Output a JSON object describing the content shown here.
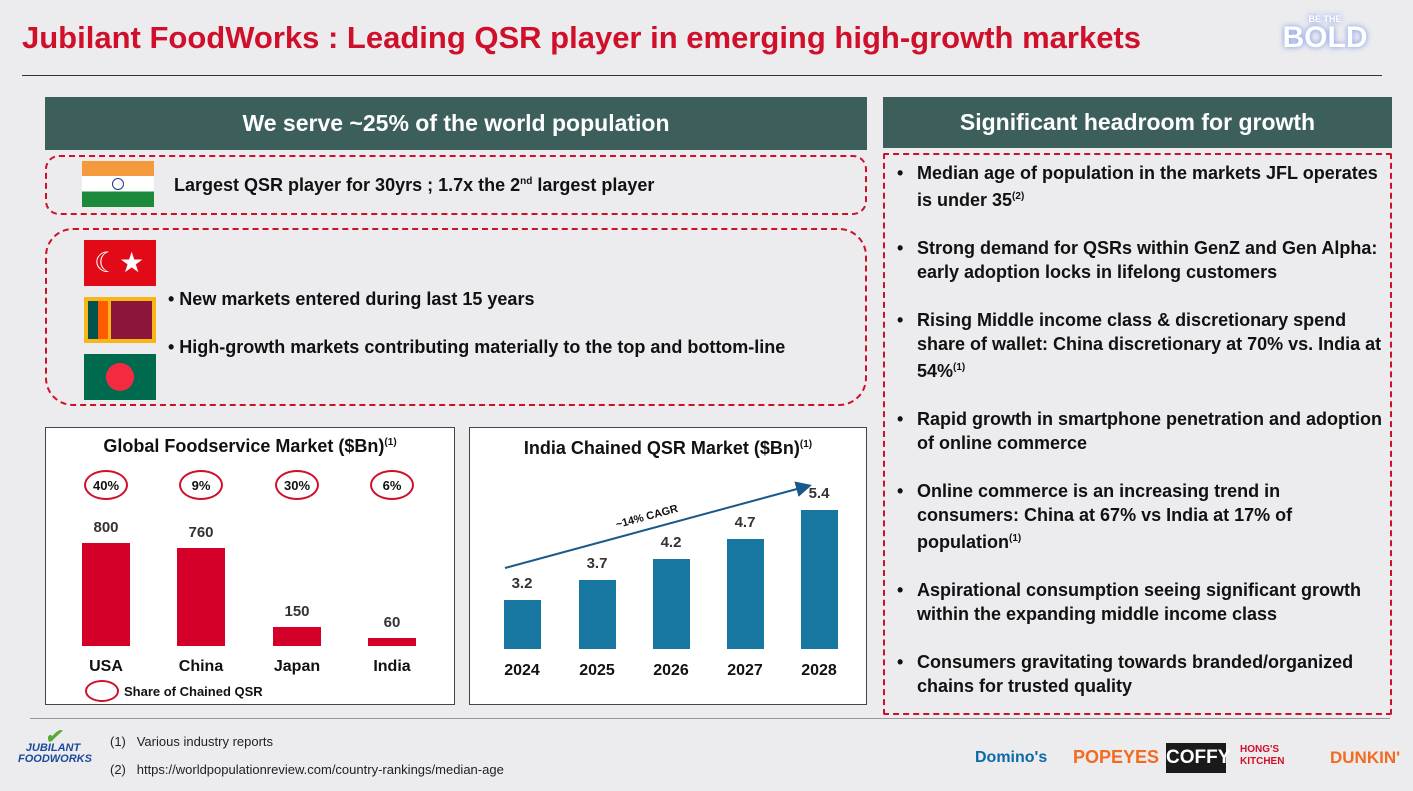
{
  "title": "Jubilant FoodWorks : Leading QSR player in emerging high-growth markets",
  "badge": {
    "top": "BE THE",
    "main": "BOLD"
  },
  "left": {
    "header": "We serve ~25% of the world population",
    "india_text": "Largest QSR player for 30yrs ; 1.7x the 2",
    "india_sup": "nd",
    "india_text2": " largest  player",
    "bullets": [
      "New markets entered during last 15 years",
      "High-growth markets contributing materially to the top and bottom-line"
    ]
  },
  "chart_data": [
    {
      "type": "bar",
      "title": "Global Foodservice Market ($Bn)",
      "title_sup": "(1)",
      "categories": [
        "USA",
        "China",
        "Japan",
        "India"
      ],
      "values": [
        800,
        760,
        150,
        60
      ],
      "value_labels": [
        "800",
        "760",
        "150",
        "60"
      ],
      "share_labels": [
        "40%",
        "9%",
        "30%",
        "6%"
      ],
      "legend": "Share of Chained QSR",
      "ylim": [
        0,
        800
      ],
      "color": "#d4002a"
    },
    {
      "type": "bar",
      "title": "India Chained QSR Market ($Bn)",
      "title_sup": "(1)",
      "categories": [
        "2024",
        "2025",
        "2026",
        "2027",
        "2028"
      ],
      "values": [
        3.2,
        3.7,
        4.2,
        4.7,
        5.4
      ],
      "value_labels": [
        "3.2",
        "3.7",
        "4.2",
        "4.7",
        "5.4"
      ],
      "annotation": "~14% CAGR",
      "ylim": [
        2,
        5.4
      ],
      "color": "#1877a0"
    }
  ],
  "right": {
    "header": "Significant headroom for growth",
    "bullets": [
      {
        "t": "Median age of population in the markets JFL operates is under 35",
        "s": "(2)"
      },
      {
        "t": "Strong demand for QSRs within GenZ and Gen Alpha: early adoption locks in lifelong customers",
        "s": ""
      },
      {
        "t": "Rising Middle income class & discretionary spend share of wallet: China discretionary at 70% vs. India at 54%",
        "s": "(1)"
      },
      {
        "t": "Rapid growth in smartphone penetration and adoption of online commerce",
        "s": ""
      },
      {
        "t": "Online commerce is an increasing trend in consumers: China at 67% vs India at 17% of population",
        "s": "(1)"
      },
      {
        "t": "Aspirational consumption seeing significant growth within the expanding middle income class",
        "s": ""
      },
      {
        "t": "Consumers gravitating towards branded/organized chains for trusted quality",
        "s": ""
      }
    ]
  },
  "footer": {
    "notes": [
      "(1)   Various industry reports",
      "(2)   https://worldpopulationreview.com/country-rankings/median-age"
    ],
    "logo": "JUBILANT FOODWORKS",
    "brands": [
      "Domino's",
      "POPEYES",
      "COFFY",
      "HONG'S KITCHEN",
      "DUNKIN'"
    ]
  }
}
